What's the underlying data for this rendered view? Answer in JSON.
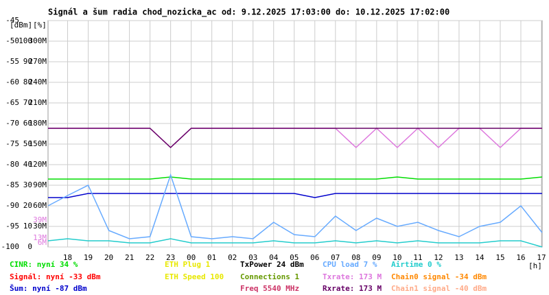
{
  "chart_data": {
    "type": "line",
    "title": "Signál a šum radia chod_nozicka_ac od: 9.12.2025 17:03:00 do: 10.12.2025 17:02:00",
    "ylabel": "[dBm]",
    "y2label": "[%]",
    "xlabel": "[h]",
    "grid": true,
    "xlim": [
      17.05,
      41.033
    ],
    "xticks": [
      {
        "value": 18,
        "label": "18"
      },
      {
        "value": 19,
        "label": "19"
      },
      {
        "value": 20,
        "label": "20"
      },
      {
        "value": 21,
        "label": "21"
      },
      {
        "value": 22,
        "label": "22"
      },
      {
        "value": 23,
        "label": "23"
      },
      {
        "value": 24,
        "label": "00"
      },
      {
        "value": 25,
        "label": "01"
      },
      {
        "value": 26,
        "label": "02"
      },
      {
        "value": 27,
        "label": "03"
      },
      {
        "value": 28,
        "label": "04"
      },
      {
        "value": 29,
        "label": "05"
      },
      {
        "value": 30,
        "label": "06"
      },
      {
        "value": 31,
        "label": "07"
      },
      {
        "value": 32,
        "label": "08"
      },
      {
        "value": 33,
        "label": "09"
      },
      {
        "value": 34,
        "label": "10"
      },
      {
        "value": 35,
        "label": "11"
      },
      {
        "value": 36,
        "label": "12"
      },
      {
        "value": 37,
        "label": "13"
      },
      {
        "value": 38,
        "label": "14"
      },
      {
        "value": 39,
        "label": "15"
      },
      {
        "value": 40,
        "label": "16"
      },
      {
        "value": 41,
        "label": "17"
      }
    ],
    "ylim": [
      -100,
      -45
    ],
    "yticks": [
      -45,
      -50,
      -55,
      -60,
      -65,
      -70,
      -75,
      -80,
      -85,
      -90,
      -95,
      -100
    ],
    "y2lim": [
      0,
      110
    ],
    "y2ticks": [
      100,
      90,
      80,
      70,
      60,
      50,
      40,
      30,
      20,
      10,
      0
    ],
    "y3lim": [
      0,
      330
    ],
    "y3ticks": [
      {
        "value": 300,
        "label": "300M"
      },
      {
        "value": 270,
        "label": "270M"
      },
      {
        "value": 240,
        "label": "240M"
      },
      {
        "value": 210,
        "label": "210M"
      },
      {
        "value": 180,
        "label": "180M"
      },
      {
        "value": 150,
        "label": "150M"
      },
      {
        "value": 120,
        "label": "120M"
      },
      {
        "value": 90,
        "label": "90M"
      },
      {
        "value": 60,
        "label": "60M"
      },
      {
        "value": 30,
        "label": "30M"
      }
    ],
    "y3markers": [
      {
        "value": 39,
        "label": "39M"
      },
      {
        "value": 13,
        "label": "13M"
      },
      {
        "value": 6,
        "label": "6M"
      }
    ],
    "y3marker_color": "#dd77dd",
    "x": [
      17.05,
      18,
      19,
      20,
      21,
      22,
      23,
      24,
      25,
      26,
      27,
      28,
      29,
      30,
      31,
      32,
      33,
      34,
      35,
      36,
      37,
      38,
      39,
      40,
      41.03
    ],
    "series": [
      {
        "name": "CINR: nyní 34 %",
        "color": "#00dd00",
        "axis": "y2",
        "values": [
          33,
          33,
          33,
          33,
          33,
          33,
          34,
          33,
          33,
          33,
          33,
          33,
          33,
          33,
          33,
          33,
          33,
          34,
          33,
          33,
          33,
          33,
          33,
          33,
          34
        ]
      },
      {
        "name": "Signál: nyní -33 dBm",
        "color": "#ff0000"
      },
      {
        "name": "Šum: nyní -87 dBm",
        "color": "#0000cc",
        "axis": "y",
        "values": [
          -88,
          -88,
          -87,
          -87,
          -87,
          -87,
          -87,
          -87,
          -87,
          -87,
          -87,
          -87,
          -87,
          -88,
          -87,
          -87,
          -87,
          -87,
          -87,
          -87,
          -87,
          -87,
          -87,
          -87,
          -87
        ]
      },
      {
        "name": "ETH Plug 1",
        "color": "#e8e800"
      },
      {
        "name": "ETH Speed 100",
        "color": "#e8e800"
      },
      {
        "name": "TxPower 24 dBm",
        "color": "#000000"
      },
      {
        "name": "Connections 1",
        "color": "#669900"
      },
      {
        "name": "Freq 5540 MHz",
        "color": "#cc3366"
      },
      {
        "name": "CPU load 7 %",
        "color": "#66aaff",
        "axis": "y2",
        "values": [
          20,
          25,
          30,
          8,
          4,
          5,
          35,
          5,
          4,
          5,
          4,
          12,
          6,
          5,
          15,
          8,
          14,
          10,
          12,
          8,
          5,
          10,
          12,
          20,
          7
        ]
      },
      {
        "name": "Txrate: 173 M",
        "color": "#dd77dd",
        "axis": "y3",
        "values": [
          173,
          173,
          173,
          173,
          173,
          173,
          145,
          173,
          173,
          173,
          173,
          173,
          173,
          173,
          173,
          145,
          173,
          145,
          173,
          145,
          173,
          173,
          145,
          173,
          173
        ]
      },
      {
        "name": "Rxrate: 173 M",
        "color": "#660066",
        "axis": "y3",
        "values": [
          173,
          173,
          173,
          173,
          173,
          173,
          145,
          173,
          173,
          173,
          173,
          173,
          173,
          173,
          173,
          173,
          173,
          173,
          173,
          173,
          173,
          173,
          173,
          173,
          173
        ]
      },
      {
        "name": "Airtime 0 %",
        "color": "#22cccc",
        "axis": "y2",
        "values": [
          3,
          4,
          3,
          3,
          2,
          2,
          4,
          2,
          2,
          2,
          2,
          3,
          2,
          2,
          3,
          2,
          3,
          2,
          3,
          2,
          2,
          2,
          3,
          3,
          0
        ]
      },
      {
        "name": "Chain0 signal -34 dBm",
        "color": "#ff8800"
      },
      {
        "name": "Chain1 signal -40 dBm",
        "color": "#ffaa88"
      }
    ]
  }
}
